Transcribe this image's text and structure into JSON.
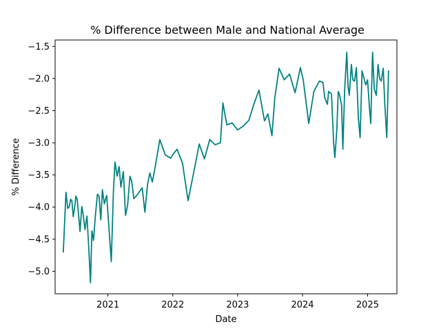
{
  "chart_data": {
    "type": "line",
    "title": "% Difference between Male and National Average",
    "xlabel": "Date",
    "ylabel": "% Difference",
    "x_tick_labels": [
      "2021",
      "2022",
      "2023",
      "2024",
      "2025"
    ],
    "x_ticks": [
      "2021-01-01",
      "2022-01-01",
      "2023-01-01",
      "2024-01-01",
      "2025-01-01"
    ],
    "y_ticks": [
      -5.0,
      -4.5,
      -4.0,
      -3.5,
      -3.0,
      -2.5,
      -2.0,
      -1.5
    ],
    "y_tick_labels": [
      "−5.0",
      "−4.5",
      "−4.0",
      "−3.5",
      "−3.0",
      "−2.5",
      "−2.0",
      "−1.5"
    ],
    "xlim": [
      "2020-03-10",
      "2025-06-15"
    ],
    "ylim": [
      -5.35,
      -1.4
    ],
    "grid": false,
    "legend": "none",
    "colors": {
      "line": "#008080"
    },
    "series": [
      {
        "name": "",
        "x": [
          "2020-04-25",
          "2020-05-10",
          "2020-05-20",
          "2020-05-28",
          "2020-06-05",
          "2020-06-12",
          "2020-06-20",
          "2020-06-28",
          "2020-07-05",
          "2020-07-12",
          "2020-07-20",
          "2020-07-28",
          "2020-08-07",
          "2020-08-15",
          "2020-08-25",
          "2020-09-05",
          "2020-09-15",
          "2020-09-25",
          "2020-10-03",
          "2020-10-12",
          "2020-10-22",
          "2020-11-03",
          "2020-11-12",
          "2020-11-22",
          "2020-12-01",
          "2020-12-12",
          "2020-12-25",
          "2021-01-08",
          "2021-01-20",
          "2021-02-01",
          "2021-02-10",
          "2021-02-22",
          "2021-03-05",
          "2021-03-15",
          "2021-03-29",
          "2021-04-10",
          "2021-04-22",
          "2021-05-05",
          "2021-05-15",
          "2021-05-27",
          "2021-06-12",
          "2021-06-27",
          "2021-07-13",
          "2021-07-28",
          "2021-08-12",
          "2021-08-25",
          "2021-09-08",
          "2021-09-25",
          "2021-10-20",
          "2021-11-20",
          "2021-12-20",
          "2022-01-05",
          "2022-01-25",
          "2022-02-25",
          "2022-03-28",
          "2022-04-26",
          "2022-05-30",
          "2022-06-28",
          "2022-07-28",
          "2022-08-27",
          "2022-09-26",
          "2022-10-10",
          "2022-11-01",
          "2022-12-01",
          "2023-01-01",
          "2023-02-01",
          "2023-03-05",
          "2023-04-01",
          "2023-05-01",
          "2023-06-01",
          "2023-06-20",
          "2023-07-13",
          "2023-07-29",
          "2023-08-22",
          "2023-09-20",
          "2023-10-20",
          "2023-11-20",
          "2023-12-20",
          "2024-01-05",
          "2024-02-05",
          "2024-03-05",
          "2024-04-05",
          "2024-04-25",
          "2024-05-05",
          "2024-05-20",
          "2024-05-27",
          "2024-06-12",
          "2024-06-24",
          "2024-07-01",
          "2024-07-12",
          "2024-07-20",
          "2024-07-27",
          "2024-08-08",
          "2024-08-15",
          "2024-08-25",
          "2024-09-06",
          "2024-09-13",
          "2024-09-20",
          "2024-10-02",
          "2024-10-10",
          "2024-10-20",
          "2024-10-30",
          "2024-11-10",
          "2024-11-20",
          "2024-12-01",
          "2024-12-12",
          "2024-12-22",
          "2025-01-01",
          "2025-01-11",
          "2025-01-19",
          "2025-01-29",
          "2025-02-08",
          "2025-02-19",
          "2025-03-01",
          "2025-03-10",
          "2025-03-19",
          "2025-03-30",
          "2025-04-08",
          "2025-04-19",
          "2025-04-29"
        ],
        "y": [
          -4.7,
          -3.77,
          -4.02,
          -4.0,
          -3.88,
          -3.9,
          -4.15,
          -4.0,
          -3.83,
          -3.88,
          -4.12,
          -4.38,
          -3.99,
          -4.12,
          -4.35,
          -4.14,
          -4.62,
          -5.18,
          -4.37,
          -4.52,
          -4.15,
          -3.8,
          -3.83,
          -4.2,
          -3.73,
          -3.95,
          -3.82,
          -4.37,
          -4.85,
          -3.75,
          -3.3,
          -3.52,
          -3.37,
          -3.69,
          -3.45,
          -4.13,
          -3.97,
          -3.52,
          -3.6,
          -3.87,
          -3.82,
          -3.76,
          -3.7,
          -4.08,
          -3.65,
          -3.47,
          -3.61,
          -3.36,
          -2.95,
          -3.19,
          -3.24,
          -3.17,
          -3.1,
          -3.32,
          -3.9,
          -3.5,
          -3.02,
          -3.25,
          -2.95,
          -3.03,
          -3.0,
          -2.38,
          -2.72,
          -2.69,
          -2.8,
          -2.74,
          -2.65,
          -2.41,
          -2.18,
          -2.66,
          -2.55,
          -2.89,
          -2.3,
          -1.84,
          -2.02,
          -1.93,
          -2.22,
          -1.83,
          -2.02,
          -2.7,
          -2.2,
          -2.04,
          -2.06,
          -2.3,
          -2.4,
          -2.2,
          -2.24,
          -3.0,
          -3.23,
          -2.8,
          -2.2,
          -2.25,
          -2.42,
          -3.1,
          -2.18,
          -1.59,
          -2.12,
          -2.26,
          -1.78,
          -2.02,
          -2.04,
          -1.83,
          -2.61,
          -2.92,
          -1.88,
          -2.0,
          -2.1,
          -2.02,
          -2.44,
          -2.7,
          -1.59,
          -2.17,
          -2.26,
          -1.78,
          -2.0,
          -2.04,
          -1.84,
          -2.4,
          -2.92,
          -1.88
        ]
      }
    ]
  }
}
